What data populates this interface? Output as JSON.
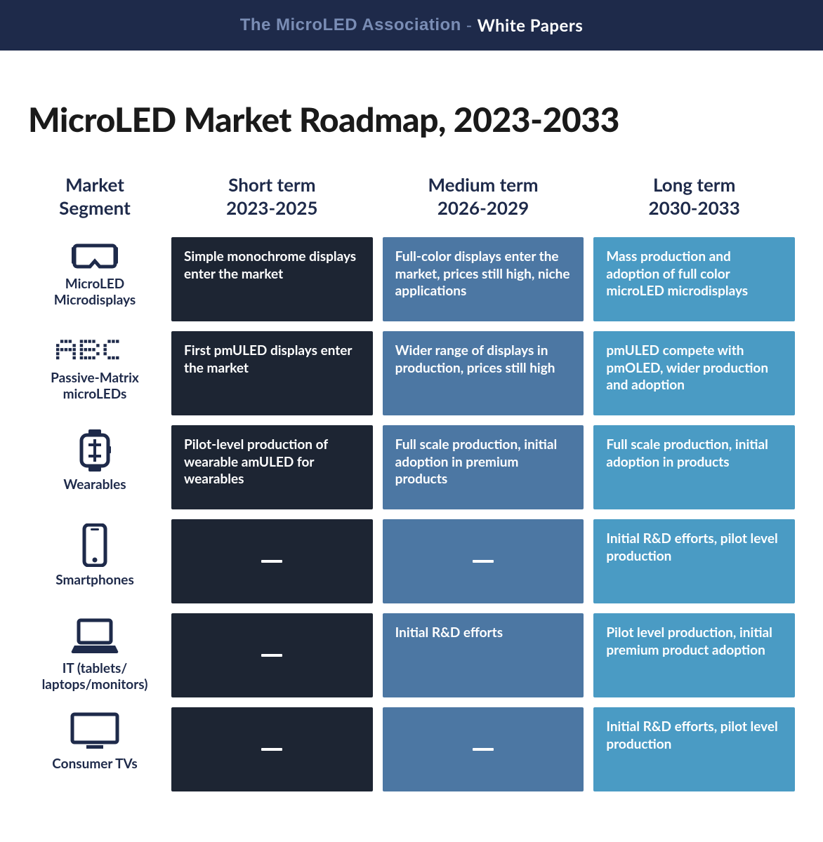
{
  "header": {
    "bg_color": "#1e2a4a",
    "prefix_text": "The MicroLED Association",
    "prefix_color": "#7a8db5",
    "separator": " - ",
    "suffix_text": "White Papers",
    "suffix_color": "#ffffff"
  },
  "title": "MicroLED Market Roadmap, 2023-2033",
  "title_color": "#1a1a1a",
  "icon_color": "#1e2a4a",
  "columns": [
    {
      "line1": "Market",
      "line2": "Segment"
    },
    {
      "line1": "Short term",
      "line2": "2023-2025"
    },
    {
      "line1": "Medium term",
      "line2": "2026-2029"
    },
    {
      "line1": "Long term",
      "line2": "2030-2033"
    }
  ],
  "column_bgs": [
    "#1d2533",
    "#4c77a3",
    "#4a9bc4"
  ],
  "segments": [
    {
      "icon": "vr",
      "label": "MicroLED\nMicrodisplays",
      "cells": [
        "Simple monochrome displays enter the market",
        "Full-color displays enter the market, prices still high, niche applications",
        "Mass production and adoption of full color microLED microdisplays"
      ]
    },
    {
      "icon": "dotmatrix",
      "label": "Passive-Matrix\nmicroLEDs",
      "cells": [
        "First pmULED displays enter the market",
        "Wider range of displays in production, prices still high",
        "pmULED compete with pmOLED, wider production and adoption"
      ]
    },
    {
      "icon": "watch",
      "label": "Wearables",
      "cells": [
        "Pilot-level production of wearable amULED for wearables",
        "Full scale production, initial adoption in premium products",
        "Full scale production, initial adoption in products"
      ]
    },
    {
      "icon": "phone",
      "label": "Smartphones",
      "cells": [
        "—",
        "—",
        "Initial R&D efforts, pilot level production"
      ]
    },
    {
      "icon": "laptop",
      "label": "IT (tablets/\nlaptops/monitors)",
      "cells": [
        "—",
        "Initial R&D efforts",
        "Pilot level production, initial premium product adoption"
      ]
    },
    {
      "icon": "tv",
      "label": "Consumer TVs",
      "cells": [
        "—",
        "—",
        "Initial R&D efforts, pilot level production"
      ]
    }
  ]
}
